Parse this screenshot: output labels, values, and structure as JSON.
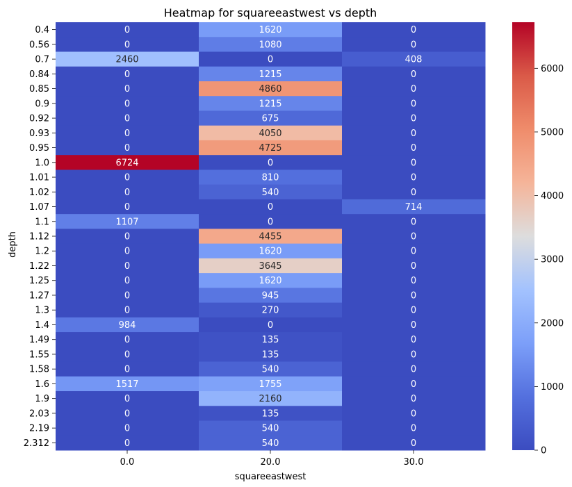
{
  "chart_data": {
    "type": "heatmap",
    "title": "Heatmap for squareeastwest vs depth",
    "xlabel": "squareeastwest",
    "ylabel": "depth",
    "x_categories": [
      "0.0",
      "20.0",
      "30.0"
    ],
    "y_categories": [
      "0.4",
      "0.56",
      "0.7",
      "0.84",
      "0.85",
      "0.9",
      "0.92",
      "0.93",
      "0.95",
      "1.0",
      "1.01",
      "1.02",
      "1.07",
      "1.1",
      "1.12",
      "1.2",
      "1.22",
      "1.25",
      "1.27",
      "1.3",
      "1.4",
      "1.49",
      "1.55",
      "1.58",
      "1.6",
      "1.9",
      "2.03",
      "2.19",
      "2.312"
    ],
    "values": [
      [
        0,
        1620,
        0
      ],
      [
        0,
        1080,
        0
      ],
      [
        2460,
        0,
        408
      ],
      [
        0,
        1215,
        0
      ],
      [
        0,
        4860,
        0
      ],
      [
        0,
        1215,
        0
      ],
      [
        0,
        675,
        0
      ],
      [
        0,
        4050,
        0
      ],
      [
        0,
        4725,
        0
      ],
      [
        6724,
        0,
        0
      ],
      [
        0,
        810,
        0
      ],
      [
        0,
        540,
        0
      ],
      [
        0,
        0,
        714
      ],
      [
        1107,
        0,
        0
      ],
      [
        0,
        4455,
        0
      ],
      [
        0,
        1620,
        0
      ],
      [
        0,
        3645,
        0
      ],
      [
        0,
        1620,
        0
      ],
      [
        0,
        945,
        0
      ],
      [
        0,
        270,
        0
      ],
      [
        984,
        0,
        0
      ],
      [
        0,
        135,
        0
      ],
      [
        0,
        135,
        0
      ],
      [
        0,
        540,
        0
      ],
      [
        1517,
        1755,
        0
      ],
      [
        0,
        2160,
        0
      ],
      [
        0,
        135,
        0
      ],
      [
        0,
        540,
        0
      ],
      [
        0,
        540,
        0
      ]
    ],
    "colormap": "coolwarm",
    "color_range": [
      0,
      6724
    ],
    "colorbar_ticks": [
      0,
      1000,
      2000,
      3000,
      4000,
      5000,
      6000
    ]
  }
}
